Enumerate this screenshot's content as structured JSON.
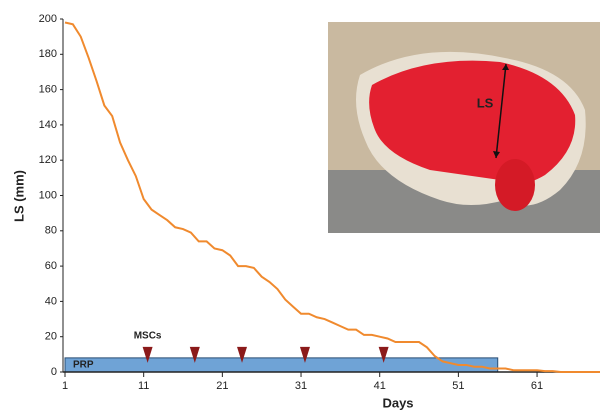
{
  "chart_data": {
    "type": "line",
    "x_label": "Days",
    "y_label": "LS (mm)",
    "x": [
      1,
      2,
      3,
      4,
      5,
      6,
      7,
      8,
      9,
      10,
      11,
      12,
      13,
      14,
      15,
      16,
      17,
      18,
      19,
      20,
      21,
      22,
      23,
      24,
      25,
      26,
      27,
      28,
      29,
      30,
      31,
      32,
      33,
      34,
      35,
      36,
      37,
      38,
      39,
      40,
      41,
      42,
      43,
      44,
      45,
      46,
      47,
      48,
      49,
      50,
      51,
      52,
      53,
      54,
      55,
      56,
      57,
      58,
      59,
      60,
      61,
      62,
      63,
      64,
      65,
      66,
      67,
      68,
      69
    ],
    "series": [
      {
        "name": "LS",
        "color": "#f08a2e",
        "values": [
          198,
          197,
          190,
          178,
          165,
          151,
          145,
          130,
          120,
          111,
          98,
          92,
          89,
          86,
          82,
          81,
          79,
          74,
          74,
          70,
          69,
          66,
          60,
          60,
          59,
          54,
          51,
          47,
          41,
          37,
          33,
          33,
          31,
          30,
          28,
          26,
          24,
          24,
          21,
          21,
          20,
          19,
          17,
          17,
          17,
          17,
          14,
          9,
          6,
          5,
          4,
          4,
          3,
          3,
          2,
          2,
          2,
          1,
          1,
          1,
          1,
          0.5,
          0.5,
          0,
          0,
          0,
          0,
          0,
          0
        ]
      }
    ],
    "xlim": [
      1,
      69
    ],
    "ylim": [
      0,
      200
    ],
    "xticks": [
      1,
      11,
      21,
      31,
      41,
      51,
      61
    ],
    "yticks": [
      0,
      20,
      40,
      60,
      80,
      100,
      120,
      140,
      160,
      180,
      200
    ],
    "prp": {
      "label": "PRP",
      "x_range": [
        1,
        56
      ],
      "value": 8,
      "color": "#6fa3d6"
    },
    "mscs": {
      "label": "MSCs",
      "x": [
        11.5,
        17.5,
        23.5,
        31.5,
        41.5
      ],
      "value": 8,
      "color": "#8b1a1a"
    },
    "photo_label": "LS"
  }
}
